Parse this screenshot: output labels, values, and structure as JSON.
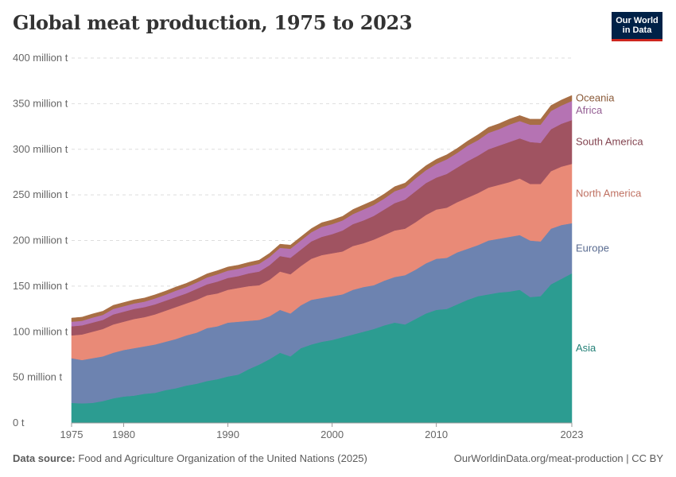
{
  "header": {
    "title": "Global meat production, 1975 to 2023",
    "logo_line1": "Our World",
    "logo_line2": "in Data"
  },
  "footer": {
    "source_label": "Data source:",
    "source_text": "Food and Agriculture Organization of the United Nations (2025)",
    "link_text": "OurWorldinData.org/meat-production | CC BY"
  },
  "chart_data": {
    "type": "area",
    "stacked": true,
    "x": [
      1975,
      1976,
      1977,
      1978,
      1979,
      1980,
      1981,
      1982,
      1983,
      1984,
      1985,
      1986,
      1987,
      1988,
      1989,
      1990,
      1991,
      1992,
      1993,
      1994,
      1995,
      1996,
      1997,
      1998,
      1999,
      2000,
      2001,
      2002,
      2003,
      2004,
      2005,
      2006,
      2007,
      2008,
      2009,
      2010,
      2011,
      2012,
      2013,
      2014,
      2015,
      2016,
      2017,
      2018,
      2019,
      2020,
      2021,
      2022,
      2023
    ],
    "xticks": [
      1975,
      1980,
      1990,
      2000,
      2010,
      2023
    ],
    "yticks": [
      0,
      50,
      100,
      150,
      200,
      250,
      300,
      350,
      400
    ],
    "ytick_labels": [
      "0 t",
      "50 million t",
      "100 million t",
      "150 million t",
      "200 million t",
      "250 million t",
      "300 million t",
      "350 million t",
      "400 million t"
    ],
    "ylim": [
      0,
      400
    ],
    "unit": "million t",
    "grid": "horizontal dashed",
    "legend": "right, inline labels",
    "series": [
      {
        "name": "Asia",
        "color": "#2c9c91",
        "values": [
          22,
          21.5,
          22,
          24,
          27,
          29,
          30,
          32,
          33,
          36,
          38,
          41,
          43,
          46,
          48,
          51,
          53,
          59,
          64,
          70,
          77,
          73,
          82,
          86,
          89,
          91,
          94,
          97,
          100,
          103,
          107,
          110,
          108,
          114,
          120,
          124,
          125,
          130,
          135,
          139,
          141,
          143,
          144,
          146,
          138,
          139,
          152,
          158,
          164
        ]
      },
      {
        "name": "Europe",
        "color": "#6d83b0",
        "values": [
          49,
          47.5,
          49,
          49,
          50,
          51,
          52,
          52,
          53,
          53,
          54,
          55,
          56,
          58,
          58,
          59,
          58,
          53,
          49,
          47,
          47,
          47,
          47,
          49,
          48,
          48,
          47,
          49,
          49,
          48,
          49,
          50,
          54,
          54,
          55,
          56,
          56,
          57,
          56,
          56,
          59,
          59,
          60,
          60,
          62,
          60,
          61,
          59,
          55
        ]
      },
      {
        "name": "North America",
        "color": "#e98a77",
        "values": [
          25,
          28,
          29,
          30,
          31,
          31,
          32,
          32,
          33,
          34,
          35,
          35,
          36,
          36,
          36,
          36,
          37,
          38,
          38,
          40,
          42,
          43,
          43,
          45,
          47,
          47,
          47,
          48,
          48,
          50,
          50,
          51,
          51,
          52,
          53,
          54,
          55,
          55,
          56,
          57,
          58,
          59,
          60,
          62,
          62,
          63,
          63,
          64,
          65
        ]
      },
      {
        "name": "South America",
        "color": "#a05361",
        "values": [
          10,
          10,
          10,
          10,
          11,
          11,
          11,
          11,
          11,
          11,
          11,
          11,
          12,
          12,
          13,
          13,
          13,
          14,
          15,
          16,
          17,
          18,
          18,
          19,
          20,
          21,
          23,
          24,
          25,
          26,
          28,
          30,
          32,
          34,
          35,
          35,
          37,
          38,
          40,
          41,
          42,
          43,
          44,
          44,
          46,
          45,
          46,
          47,
          48
        ]
      },
      {
        "name": "Africa",
        "color": "#b573b3",
        "values": [
          5,
          5,
          5.5,
          5.5,
          6,
          6,
          6,
          6,
          6.5,
          6.5,
          7,
          7,
          7,
          7.5,
          8,
          8,
          8,
          8,
          8.5,
          9,
          9,
          10,
          10,
          10,
          11,
          11,
          11,
          11,
          12,
          12,
          12,
          13,
          13,
          14,
          14,
          15,
          16,
          16,
          17,
          17,
          18,
          18,
          19,
          19,
          19,
          20,
          20,
          20,
          21
        ]
      },
      {
        "name": "Oceania",
        "color": "#a86e45",
        "values": [
          4,
          4,
          4,
          4,
          4,
          4,
          4,
          4,
          4,
          4,
          4,
          4,
          4,
          4,
          4,
          4,
          4,
          4,
          4,
          4,
          4,
          4,
          4,
          4,
          4.5,
          4.5,
          4.5,
          5,
          5,
          5,
          5,
          5,
          5,
          5,
          5,
          5,
          5,
          5,
          5,
          6,
          6,
          6,
          6,
          6,
          6,
          6,
          6,
          6,
          6
        ]
      }
    ]
  }
}
